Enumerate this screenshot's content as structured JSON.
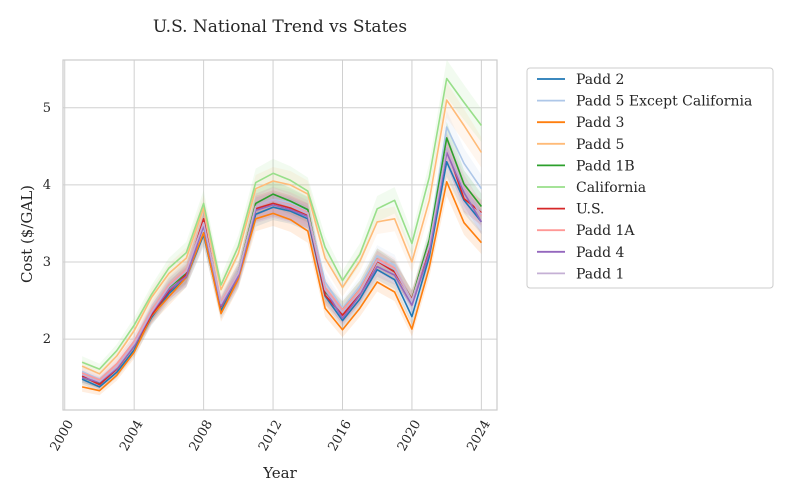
{
  "chart_data": {
    "type": "line",
    "title": "U.S. National Trend vs States",
    "xlabel": "Year",
    "ylabel": "Cost ($/GAL)",
    "xlim": [
      1999.9,
      2024.9
    ],
    "ylim": [
      1.08,
      5.62
    ],
    "xticks": [
      2000,
      2004,
      2008,
      2012,
      2016,
      2020,
      2024
    ],
    "xtick_labels": [
      "2000",
      "2004",
      "2008",
      "2012",
      "2016",
      "2020",
      "2024"
    ],
    "yticks": [
      2,
      3,
      4,
      5
    ],
    "ytick_labels": [
      "2",
      "3",
      "4",
      "5"
    ],
    "grid": true,
    "legend_position": "outside-right",
    "confidence_bands": true,
    "x": [
      2001,
      2002,
      2003,
      2004,
      2005,
      2006,
      2007,
      2008,
      2009,
      2010,
      2011,
      2012,
      2013,
      2014,
      2015,
      2016,
      2017,
      2018,
      2019,
      2020,
      2021,
      2022,
      2023,
      2024
    ],
    "series": [
      {
        "name": "Padd 2",
        "color": "#1f77b4",
        "values": [
          1.48,
          1.38,
          1.57,
          1.86,
          2.28,
          2.59,
          2.8,
          3.35,
          2.37,
          2.79,
          3.62,
          3.71,
          3.66,
          3.56,
          2.56,
          2.24,
          2.52,
          2.9,
          2.77,
          2.29,
          3.07,
          4.3,
          3.8,
          3.52
        ]
      },
      {
        "name": "Padd 5 Except California",
        "color": "#aec7e8",
        "values": [
          1.58,
          1.48,
          1.68,
          1.97,
          2.36,
          2.67,
          2.87,
          3.4,
          2.46,
          2.88,
          3.72,
          3.81,
          3.77,
          3.67,
          2.74,
          2.4,
          2.69,
          3.08,
          2.96,
          2.47,
          3.26,
          4.75,
          4.28,
          3.95
        ]
      },
      {
        "name": "Padd 3",
        "color": "#ff7f0e",
        "values": [
          1.38,
          1.33,
          1.53,
          1.83,
          2.3,
          2.55,
          2.8,
          3.38,
          2.33,
          2.78,
          3.56,
          3.63,
          3.55,
          3.4,
          2.4,
          2.12,
          2.4,
          2.74,
          2.61,
          2.13,
          2.93,
          4.04,
          3.51,
          3.25
        ]
      },
      {
        "name": "Padd 5",
        "color": "#ffbb78",
        "values": [
          1.65,
          1.55,
          1.78,
          2.11,
          2.54,
          2.85,
          3.05,
          3.7,
          2.64,
          3.11,
          3.95,
          4.05,
          4.0,
          3.88,
          3.05,
          2.67,
          3.01,
          3.52,
          3.56,
          3.0,
          3.8,
          5.1,
          4.77,
          4.42
        ]
      },
      {
        "name": "Padd 1B",
        "color": "#2ca02c",
        "values": [
          1.5,
          1.43,
          1.62,
          1.91,
          2.33,
          2.67,
          2.85,
          3.49,
          2.44,
          2.86,
          3.76,
          3.88,
          3.79,
          3.68,
          2.61,
          2.38,
          2.64,
          3.04,
          2.89,
          2.52,
          3.29,
          4.61,
          4.01,
          3.72
        ]
      },
      {
        "name": "California",
        "color": "#98df8a",
        "values": [
          1.7,
          1.61,
          1.85,
          2.18,
          2.58,
          2.92,
          3.12,
          3.76,
          2.7,
          3.2,
          4.03,
          4.15,
          4.06,
          3.92,
          3.19,
          2.76,
          3.1,
          3.69,
          3.8,
          3.24,
          4.1,
          5.38,
          5.07,
          4.77
        ]
      },
      {
        "name": "U.S.",
        "color": "#d62728",
        "values": [
          1.52,
          1.41,
          1.61,
          1.91,
          2.31,
          2.62,
          2.84,
          3.56,
          2.42,
          2.83,
          3.69,
          3.76,
          3.7,
          3.6,
          2.57,
          2.31,
          2.58,
          3.01,
          2.87,
          2.52,
          3.17,
          4.47,
          3.82,
          3.64
        ]
      },
      {
        "name": "Padd 1A",
        "color": "#ff9896",
        "values": [
          1.56,
          1.47,
          1.68,
          1.97,
          2.37,
          2.7,
          2.9,
          3.5,
          2.48,
          2.86,
          3.72,
          3.8,
          3.74,
          3.64,
          2.67,
          2.38,
          2.64,
          3.04,
          2.92,
          2.5,
          3.22,
          4.44,
          3.96,
          3.6
        ]
      },
      {
        "name": "Padd 4",
        "color": "#9467bd",
        "values": [
          1.5,
          1.44,
          1.62,
          1.91,
          2.34,
          2.64,
          2.81,
          3.47,
          2.43,
          2.81,
          3.67,
          3.74,
          3.68,
          3.59,
          2.64,
          2.27,
          2.57,
          2.94,
          2.83,
          2.44,
          3.12,
          4.42,
          3.9,
          3.52
        ]
      },
      {
        "name": "Padd 1",
        "color": "#c5b0d5",
        "values": [
          1.54,
          1.45,
          1.64,
          1.94,
          2.35,
          2.68,
          2.88,
          3.51,
          2.46,
          2.85,
          3.72,
          3.8,
          3.73,
          3.63,
          2.64,
          2.35,
          2.61,
          3.02,
          2.9,
          2.5,
          3.22,
          4.48,
          3.95,
          3.61
        ]
      }
    ]
  }
}
